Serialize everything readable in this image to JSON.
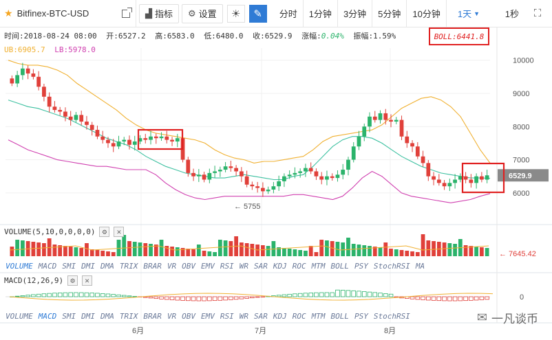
{
  "toolbar": {
    "symbol": "Bitfinex-BTC-USD",
    "indicator_label": "指标",
    "settings_label": "设置",
    "periods": [
      "分时",
      "1分钟",
      "3分钟",
      "5分钟",
      "10分钟"
    ],
    "active_period": "1天",
    "interval_1s": "1秒"
  },
  "info": {
    "time": "时间:2018-08-24 08:00",
    "open": "开:6527.2",
    "high": "高:6583.0",
    "low": "低:6480.0",
    "close": "收:6529.9",
    "change": "0.04%",
    "change_label": "涨幅:",
    "amplitude": "振幅:1.59%",
    "boll": "BOLL:6441.8",
    "ub": "UB:6905.7",
    "lb": "LB:5978.0"
  },
  "colors": {
    "up": "#2bb36b",
    "down": "#e0403a",
    "ub": "#f0b030",
    "lb": "#d040b0",
    "mid": "#3cc0a0",
    "accent": "#2f7bd5"
  },
  "chart_data": {
    "type": "candlestick",
    "y_ticks": [
      "10000",
      "9000",
      "8000",
      "7000",
      "6000"
    ],
    "current_price": "6529.9",
    "min_label": "5755",
    "x_labels": [
      "6月",
      "7月",
      "8月"
    ],
    "volume_label": "VOLUME(5,10,0,0,0,0)",
    "volume_last": "7645.42",
    "macd_label": "MACD(12,26,9)",
    "macd_zero": "0",
    "indicators": [
      "VOLUME",
      "MACD",
      "SMI",
      "DMI",
      "DMA",
      "TRIX",
      "BRAR",
      "VR",
      "OBV",
      "EMV",
      "RSI",
      "WR",
      "SAR",
      "KDJ",
      "ROC",
      "MTM",
      "BOLL",
      "PSY",
      "StochRSI",
      "MA"
    ],
    "close_series": [
      9300,
      9550,
      9750,
      9600,
      9500,
      9200,
      8900,
      8600,
      8500,
      8450,
      8300,
      8200,
      8350,
      8150,
      8050,
      7900,
      7700,
      7600,
      7500,
      7400,
      7550,
      7600,
      7450,
      7550,
      7650,
      7600,
      7700,
      7650,
      7700,
      7600,
      7550,
      7650,
      7000,
      6600,
      6500,
      6550,
      6400,
      6600,
      6650,
      6700,
      6800,
      6750,
      6650,
      6500,
      6250,
      6200,
      6150,
      6050,
      6100,
      6200,
      6350,
      6500,
      6550,
      6600,
      6650,
      6750,
      6650,
      6500,
      6400,
      6500,
      6450,
      6550,
      6700,
      7000,
      7400,
      7700,
      8000,
      8300,
      8200,
      8400,
      8200,
      8150,
      8200,
      7700,
      7500,
      7400,
      7100,
      6900,
      6500,
      6400,
      6300,
      6200,
      6300,
      6400,
      6500,
      6400,
      6300,
      6500,
      6400,
      6530
    ],
    "ub_series": [
      10000,
      9900,
      9850,
      9850,
      9800,
      9700,
      9550,
      9300,
      9100,
      8900,
      8700,
      8500,
      8250,
      8050,
      7900,
      7800,
      7750,
      7700,
      7650,
      7600,
      7500,
      7300,
      7150,
      7050,
      7000,
      6900,
      6950,
      6950,
      7000,
      7050,
      7100,
      7300,
      7550,
      7700,
      7750,
      7800,
      7850,
      7900,
      8050,
      8300,
      8550,
      8700,
      8850,
      8900,
      8800,
      8600,
      8300,
      7800,
      7300,
      6900
    ],
    "lb_series": [
      7600,
      7450,
      7300,
      7200,
      7100,
      7000,
      6950,
      6900,
      6850,
      6800,
      6800,
      6750,
      6700,
      6700,
      6700,
      6550,
      6300,
      6100,
      5950,
      5850,
      5800,
      5850,
      5900,
      5900,
      5900,
      5900,
      5900,
      5900,
      5900,
      5950,
      5950,
      5900,
      5850,
      5800,
      5900,
      6150,
      6450,
      6650,
      6500,
      6250,
      6000,
      5900,
      5850,
      5800,
      5750,
      5700,
      5750,
      5800,
      5900,
      5980
    ],
    "mid_series": [
      8800,
      8700,
      8600,
      8550,
      8450,
      8350,
      8250,
      8100,
      7950,
      7800,
      7650,
      7550,
      7450,
      7300,
      7100,
      6950,
      6800,
      6700,
      6600,
      6550,
      6500,
      6450,
      6450,
      6500,
      6550,
      6500,
      6450,
      6400,
      6400,
      6500,
      6550,
      6800,
      7100,
      7400,
      7600,
      7700,
      7700,
      7650,
      7500,
      7300,
      7100,
      6950,
      6800,
      6700,
      6600,
      6550,
      6500,
      6450,
      6450,
      6440
    ]
  },
  "watermark": "一凡谈币"
}
